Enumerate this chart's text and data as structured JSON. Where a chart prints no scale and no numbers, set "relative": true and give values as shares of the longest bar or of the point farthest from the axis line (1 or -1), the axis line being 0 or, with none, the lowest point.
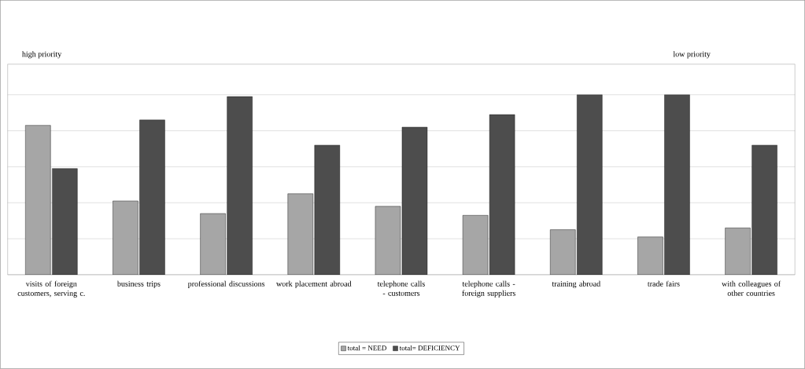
{
  "chart_data": {
    "type": "bar",
    "relative": true,
    "grid": "y",
    "legend": "bottom",
    "categories": [
      "visits of foreign customers, serving c.",
      "business trips",
      "professional discussions",
      "work placement abroad",
      "telephone calls - customers",
      "telephone calls - foreign suppliers",
      "training abroad",
      "trade fairs",
      "with colleagues of other countries"
    ],
    "series": [
      {
        "name": "total = NEED",
        "color": "#a6a6a6",
        "values": [
          0.83,
          0.41,
          0.34,
          0.45,
          0.38,
          0.33,
          0.25,
          0.21,
          0.26
        ]
      },
      {
        "name": "total= DEFICIENCY",
        "color": "#4d4d4d",
        "values": [
          0.59,
          0.86,
          0.99,
          0.72,
          0.82,
          0.89,
          1,
          1,
          0.72
        ]
      }
    ],
    "annotations": [
      "high priority",
      "low priority"
    ]
  }
}
